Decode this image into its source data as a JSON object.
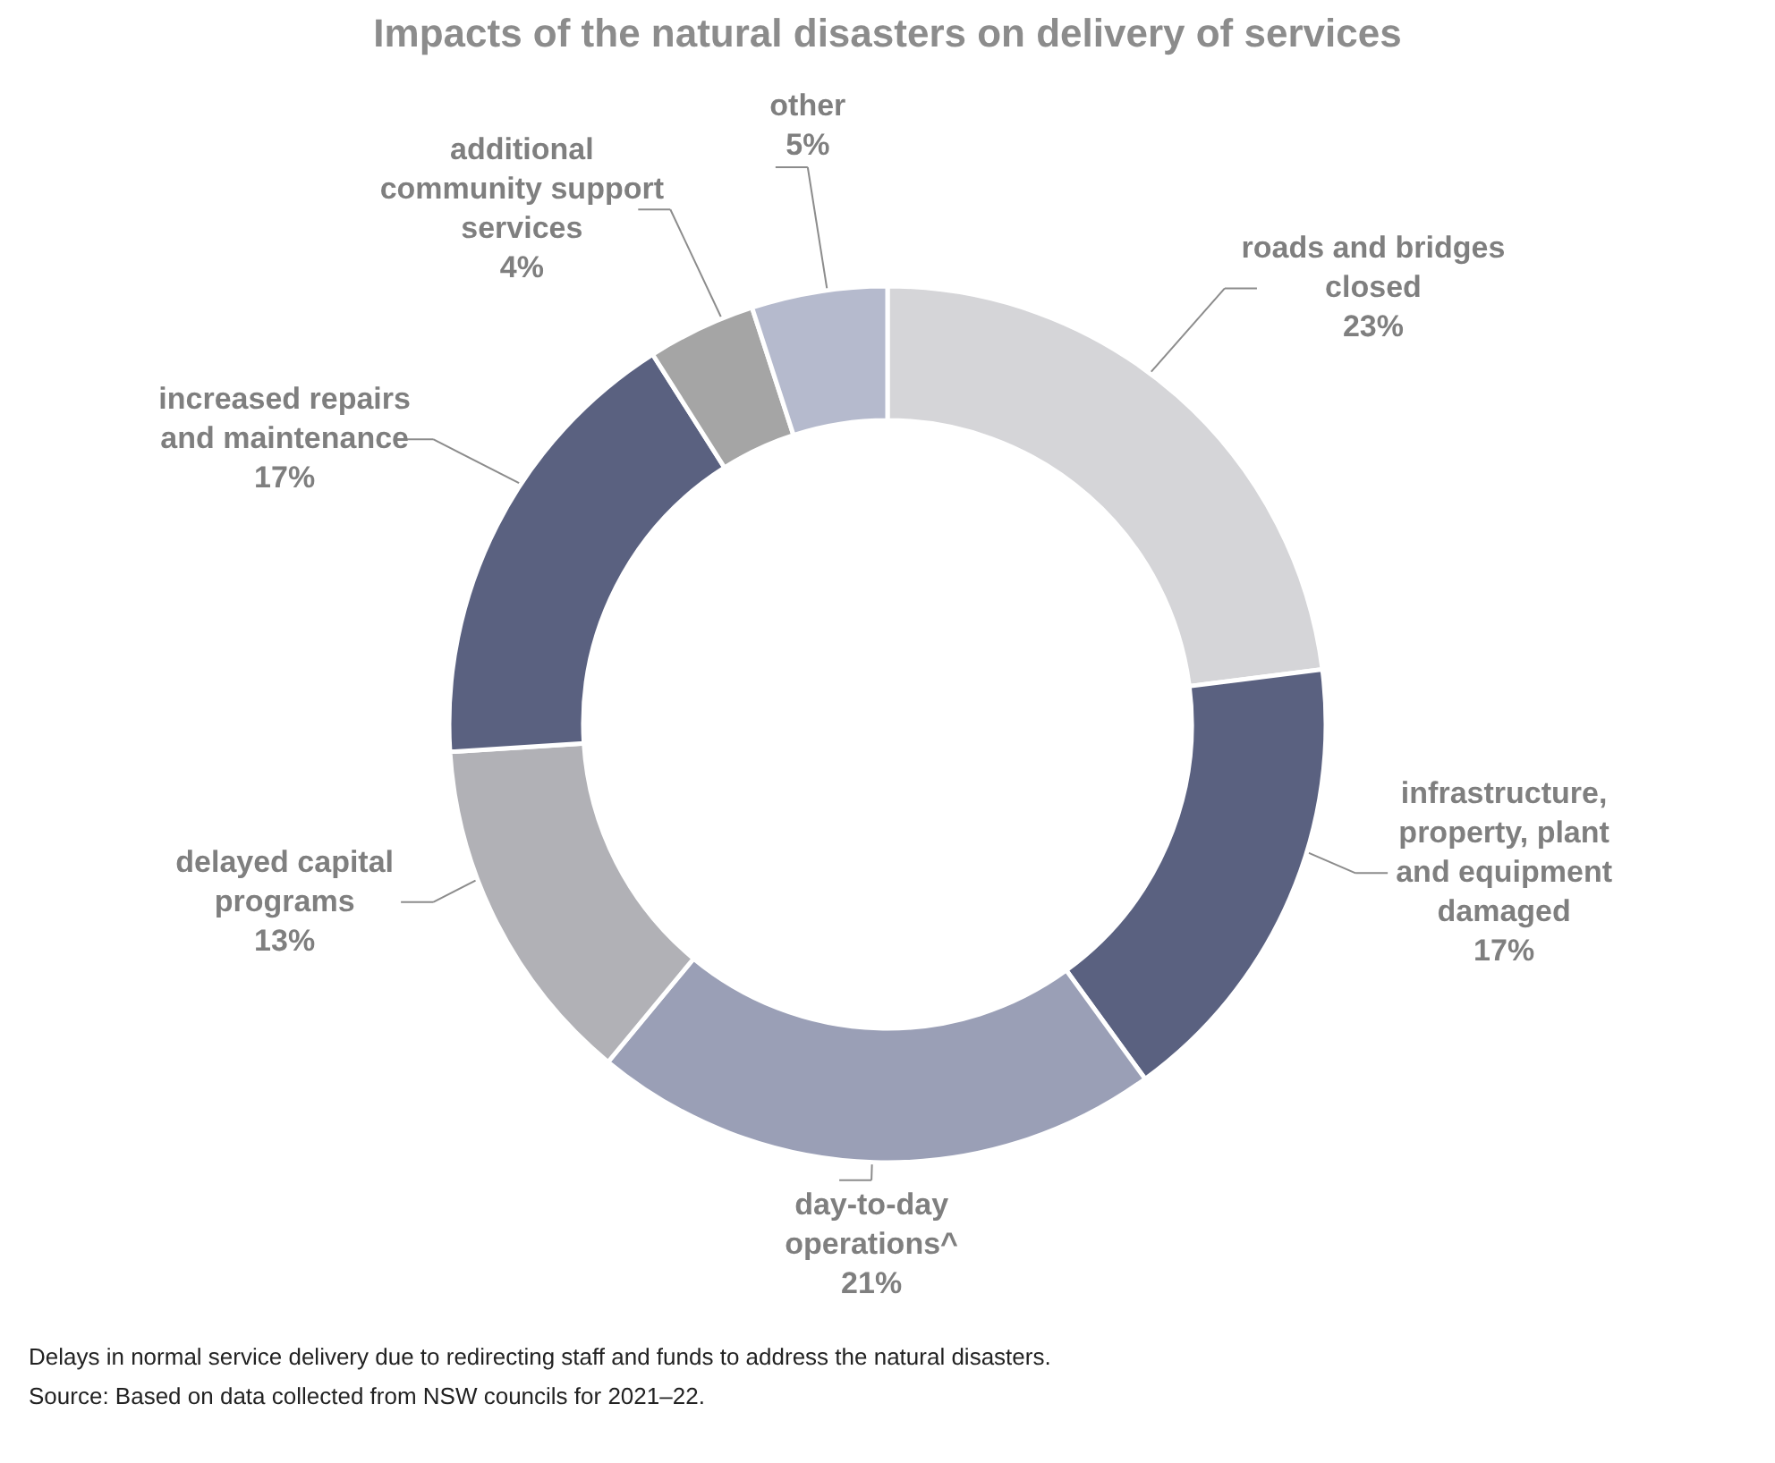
{
  "chart_data": {
    "type": "donut",
    "title": "Impacts of the natural disasters on delivery of services",
    "categories": [
      "roads and bridges closed",
      "infrastructure, property, plant and equipment damaged",
      "day-to-day operations^",
      "delayed capital programs",
      "increased repairs and maintenance",
      "additional community support services",
      "other"
    ],
    "values": [
      23,
      17,
      21,
      13,
      17,
      4,
      5
    ],
    "value_labels": [
      "23%",
      "17%",
      "21%",
      "13%",
      "17%",
      "4%",
      "5%"
    ],
    "colors": [
      "#d5d5d8",
      "#5a6180",
      "#9a9fb6",
      "#b1b1b6",
      "#5a6180",
      "#a5a5a5",
      "#b5bacd"
    ],
    "annotations": [
      "Delays in normal service delivery due to redirecting staff and funds to address the natural disasters.",
      "Source: Based on data collected from NSW councils for 2021–22."
    ]
  }
}
